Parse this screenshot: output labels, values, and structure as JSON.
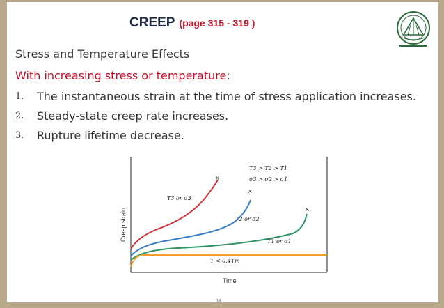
{
  "title": {
    "main": "CREEP",
    "pages": "(page 315 - 319 )"
  },
  "subtitle": "Stress and Temperature Effects",
  "lead": {
    "text": "With increasing stress or temperature",
    "colon": ":"
  },
  "list": [
    {
      "num": "1.",
      "text": "The instantaneous strain at the time of stress application increases."
    },
    {
      "num": "2.",
      "text": "Steady-state creep rate increases."
    },
    {
      "num": "3.",
      "text": "Rupture lifetime decrease."
    }
  ],
  "chart_data": {
    "type": "line",
    "xlabel": "Time",
    "ylabel": "Creep strain",
    "annotations": {
      "order_T": "T3 > T2 > T1",
      "order_sigma": "σ3 > σ2 > σ1",
      "low_temp": "T < 0.4Tm"
    },
    "series": [
      {
        "name": "T3 or σ3",
        "color": "#d0353d",
        "rupture": true
      },
      {
        "name": "T2 or σ2",
        "color": "#3a7fc6",
        "rupture": true
      },
      {
        "name": "T1 or σ1",
        "color": "#2e9466",
        "rupture": true
      },
      {
        "name": "T < 0.4Tm",
        "color": "#f1a12a",
        "rupture": false
      }
    ]
  },
  "colors": {
    "accent": "#c0142a",
    "title": "#1f2a44",
    "border": "#b7a88a"
  },
  "logo": {
    "icon": "university-seal-icon"
  },
  "page_number": "38"
}
